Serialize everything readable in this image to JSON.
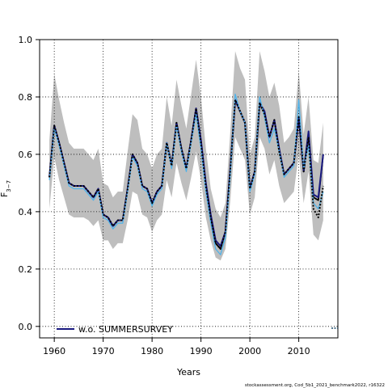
{
  "chart_data": {
    "type": "line",
    "title": "",
    "xlabel": "Years",
    "ylabel": "F",
    "ylabel_sub": "3−7",
    "xlim": [
      1957,
      2018
    ],
    "ylim": [
      -0.04,
      1.0
    ],
    "xticks": [
      1960,
      1970,
      1980,
      1990,
      2000,
      2010
    ],
    "yticks": [
      0.0,
      0.2,
      0.4,
      0.6,
      0.8,
      1.0
    ],
    "grid": true,
    "legend": {
      "placement": "bottom-left",
      "entries": [
        "w.o. SUMMERSURVEY"
      ]
    },
    "caption": "stockassessment.org, Cod_5b1_2021_benchmark2022, r16322",
    "colors": {
      "band": "#bebebe",
      "base_line": "#000000",
      "light_line": "#4fb3ea",
      "alt_line": "#1a1a80"
    },
    "years": [
      1959,
      1960,
      1961,
      1962,
      1963,
      1964,
      1965,
      1966,
      1967,
      1968,
      1969,
      1970,
      1971,
      1972,
      1973,
      1974,
      1975,
      1976,
      1977,
      1978,
      1979,
      1980,
      1981,
      1982,
      1983,
      1984,
      1985,
      1986,
      1987,
      1988,
      1989,
      1990,
      1991,
      1992,
      1993,
      1994,
      1995,
      1996,
      1997,
      1998,
      1999,
      2000,
      2001,
      2002,
      2003,
      2004,
      2005,
      2006,
      2007,
      2008,
      2009,
      2010,
      2011,
      2012,
      2013,
      2014,
      2015
    ],
    "series": [
      {
        "kind": "base",
        "values": [
          0.52,
          0.7,
          0.64,
          0.57,
          0.5,
          0.49,
          0.49,
          0.49,
          0.47,
          0.45,
          0.48,
          0.39,
          0.38,
          0.35,
          0.37,
          0.37,
          0.48,
          0.6,
          0.57,
          0.49,
          0.48,
          0.43,
          0.47,
          0.49,
          0.64,
          0.56,
          0.71,
          0.62,
          0.55,
          0.65,
          0.76,
          0.64,
          0.49,
          0.38,
          0.29,
          0.27,
          0.33,
          0.55,
          0.79,
          0.75,
          0.71,
          0.48,
          0.54,
          0.78,
          0.74,
          0.66,
          0.72,
          0.61,
          0.53,
          0.55,
          0.57,
          0.73,
          0.54,
          0.67,
          0.45,
          0.44,
          0.6
        ],
        "lower": [
          0.41,
          0.59,
          0.51,
          0.45,
          0.39,
          0.38,
          0.38,
          0.38,
          0.37,
          0.35,
          0.37,
          0.3,
          0.3,
          0.27,
          0.29,
          0.29,
          0.37,
          0.47,
          0.46,
          0.39,
          0.38,
          0.33,
          0.37,
          0.39,
          0.51,
          0.45,
          0.57,
          0.5,
          0.44,
          0.52,
          0.61,
          0.51,
          0.38,
          0.3,
          0.24,
          0.23,
          0.27,
          0.44,
          0.66,
          0.62,
          0.58,
          0.39,
          0.45,
          0.66,
          0.62,
          0.53,
          0.58,
          0.49,
          0.43,
          0.45,
          0.47,
          0.6,
          0.43,
          0.54,
          0.32,
          0.3,
          0.37
        ],
        "upper": [
          0.65,
          0.88,
          0.79,
          0.71,
          0.64,
          0.62,
          0.62,
          0.62,
          0.6,
          0.58,
          0.62,
          0.5,
          0.49,
          0.45,
          0.47,
          0.47,
          0.61,
          0.74,
          0.72,
          0.62,
          0.6,
          0.55,
          0.6,
          0.62,
          0.8,
          0.7,
          0.86,
          0.77,
          0.69,
          0.81,
          0.93,
          0.8,
          0.62,
          0.48,
          0.41,
          0.38,
          0.43,
          0.68,
          0.96,
          0.9,
          0.86,
          0.6,
          0.66,
          0.96,
          0.89,
          0.8,
          0.85,
          0.77,
          0.64,
          0.66,
          0.69,
          0.89,
          0.67,
          0.8,
          0.58,
          0.57,
          0.71
        ]
      },
      {
        "kind": "light",
        "values": [
          0.51,
          0.69,
          0.63,
          0.56,
          0.49,
          0.48,
          0.48,
          0.48,
          0.46,
          0.44,
          0.47,
          0.38,
          0.37,
          0.34,
          0.36,
          0.36,
          0.47,
          0.59,
          0.56,
          0.48,
          0.47,
          0.42,
          0.46,
          0.48,
          0.64,
          0.55,
          0.7,
          0.61,
          0.54,
          0.64,
          0.74,
          0.62,
          0.47,
          0.36,
          0.27,
          0.25,
          0.31,
          0.53,
          0.81,
          0.75,
          0.71,
          0.47,
          0.53,
          0.8,
          0.73,
          0.64,
          0.69,
          0.61,
          0.52,
          0.54,
          0.56,
          0.79,
          0.55,
          0.63,
          0.43,
          0.41,
          0.47
        ]
      },
      {
        "kind": "alt",
        "name": "w.o. SUMMERSURVEY",
        "values": [
          0.52,
          0.7,
          0.64,
          0.57,
          0.5,
          0.49,
          0.49,
          0.49,
          0.47,
          0.45,
          0.48,
          0.39,
          0.38,
          0.35,
          0.37,
          0.37,
          0.48,
          0.6,
          0.57,
          0.49,
          0.48,
          0.43,
          0.47,
          0.49,
          0.64,
          0.56,
          0.71,
          0.62,
          0.55,
          0.65,
          0.76,
          0.65,
          0.5,
          0.39,
          0.3,
          0.28,
          0.33,
          0.55,
          0.79,
          0.75,
          0.71,
          0.48,
          0.54,
          0.78,
          0.75,
          0.66,
          0.72,
          0.62,
          0.53,
          0.55,
          0.57,
          0.73,
          0.54,
          0.68,
          0.46,
          0.45,
          0.6
        ]
      },
      {
        "kind": "dashed",
        "values": [
          0.52,
          0.7,
          0.64,
          0.57,
          0.5,
          0.49,
          0.49,
          0.49,
          0.47,
          0.45,
          0.48,
          0.39,
          0.38,
          0.35,
          0.37,
          0.37,
          0.48,
          0.6,
          0.57,
          0.49,
          0.48,
          0.43,
          0.47,
          0.49,
          0.64,
          0.56,
          0.71,
          0.62,
          0.55,
          0.65,
          0.76,
          0.64,
          0.49,
          0.38,
          0.29,
          0.27,
          0.33,
          0.55,
          0.79,
          0.75,
          0.71,
          0.48,
          0.54,
          0.78,
          0.74,
          0.66,
          0.72,
          0.61,
          0.53,
          0.55,
          0.57,
          0.73,
          0.54,
          0.66,
          0.41,
          0.38,
          0.49
        ]
      }
    ]
  }
}
